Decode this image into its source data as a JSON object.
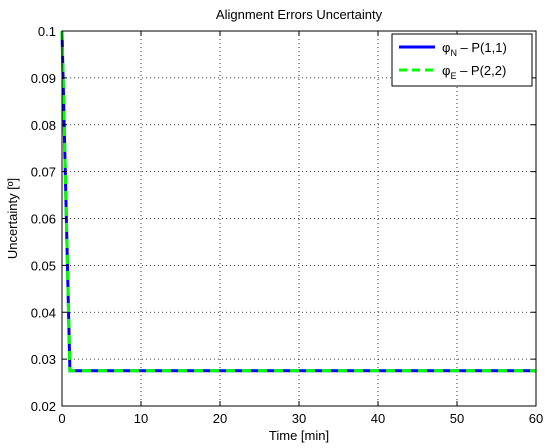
{
  "chart_data": {
    "type": "line",
    "title": "Alignment Errors Uncertainty",
    "xlabel": "Time [min]",
    "ylabel": "Uncertainty [º]",
    "xlim": [
      0,
      60
    ],
    "ylim": [
      0.02,
      0.1
    ],
    "xticks": [
      0,
      10,
      20,
      30,
      40,
      50,
      60
    ],
    "yticks": [
      0.02,
      0.03,
      0.04,
      0.05,
      0.06,
      0.07,
      0.08,
      0.09,
      0.1
    ],
    "xtick_labels": [
      "0",
      "10",
      "20",
      "30",
      "40",
      "50",
      "60"
    ],
    "ytick_labels": [
      "0.02",
      "0.03",
      "0.04",
      "0.05",
      "0.06",
      "0.07",
      "0.08",
      "0.09",
      "0.1"
    ],
    "grid": true,
    "legend_position": "top-right",
    "series": [
      {
        "name": "φN – P(1,1)",
        "legend_symbol": "φ",
        "legend_subscript": "N",
        "legend_rest": " – P(1,1)",
        "color": "#0000ff",
        "style": "solid",
        "x": [
          0,
          1,
          60
        ],
        "y": [
          0.1,
          0.0275,
          0.0275
        ]
      },
      {
        "name": "φE – P(2,2)",
        "legend_symbol": "φ",
        "legend_subscript": "E",
        "legend_rest": " – P(2,2)",
        "color": "#00ff00",
        "style": "dashed",
        "x": [
          0,
          1,
          60
        ],
        "y": [
          0.1,
          0.0275,
          0.0275
        ]
      }
    ]
  }
}
